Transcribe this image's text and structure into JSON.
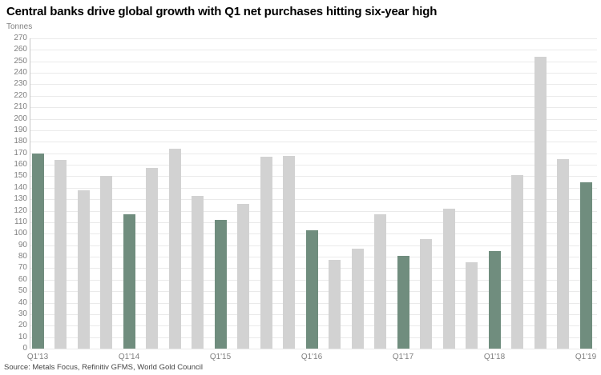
{
  "title": "Central banks drive global growth with Q1 net purchases hitting six-year high",
  "source": "Source: Metals Focus, Refinitiv GFMS, World Gold Council",
  "chart_data": {
    "type": "bar",
    "title": "Central banks drive global growth with Q1 net purchases hitting six-year high",
    "unit_label": "Tonnes",
    "ylabel": "Tonnes",
    "xlabel": "",
    "ylim": [
      0,
      270
    ],
    "ytick_step": 10,
    "grid": true,
    "legend": "none",
    "categories": [
      "Q1'13",
      "Q2'13",
      "Q3'13",
      "Q4'13",
      "Q1'14",
      "Q2'14",
      "Q3'14",
      "Q4'14",
      "Q1'15",
      "Q2'15",
      "Q3'15",
      "Q4'15",
      "Q1'16",
      "Q2'16",
      "Q3'16",
      "Q4'16",
      "Q1'17",
      "Q2'17",
      "Q3'17",
      "Q4'17",
      "Q1'18",
      "Q2'18",
      "Q3'18",
      "Q4'18",
      "Q1'19"
    ],
    "values": [
      170,
      164,
      138,
      150,
      117,
      157,
      174,
      133,
      112,
      126,
      167,
      168,
      103,
      77,
      87,
      117,
      81,
      95,
      122,
      75,
      85,
      151,
      254,
      165,
      145
    ],
    "highlighted_categories": [
      "Q1'13",
      "Q1'14",
      "Q1'15",
      "Q1'16",
      "Q1'17",
      "Q1'18",
      "Q1'19"
    ],
    "xtick_labels_shown": [
      "Q1'13",
      "Q1'14",
      "Q1'15",
      "Q1'16",
      "Q1'17",
      "Q1'18",
      "Q1'19"
    ],
    "colors": {
      "highlight_bar": "#708D7E",
      "default_bar": "#D2D2D2",
      "gridline": "#EAEAEA",
      "axis_line": "#C6C6C6",
      "tick_text": "#7F7F7F",
      "title_text": "#000000",
      "source_text": "#454545"
    }
  }
}
